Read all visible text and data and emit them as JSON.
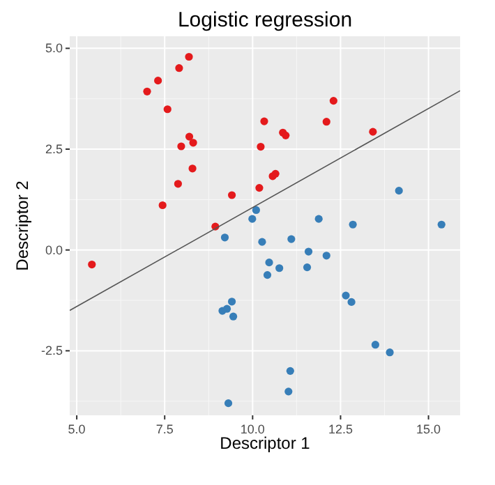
{
  "chart_data": {
    "type": "scatter",
    "title": "Logistic regression",
    "xlabel": "Descriptor 1",
    "ylabel": "Descriptor 2",
    "xlim": [
      4.8,
      15.9
    ],
    "ylim": [
      -4.1,
      5.3
    ],
    "xticks": [
      {
        "value": 5,
        "label": "5.0"
      },
      {
        "value": 7.5,
        "label": "7.5"
      },
      {
        "value": 10,
        "label": "10.0"
      },
      {
        "value": 12.5,
        "label": "12.5"
      },
      {
        "value": 15,
        "label": "15.0"
      }
    ],
    "yticks": [
      {
        "value": -2.5,
        "label": "-2.5"
      },
      {
        "value": 0,
        "label": "0.0"
      },
      {
        "value": 2.5,
        "label": "2.5"
      },
      {
        "value": 5,
        "label": "5.0"
      }
    ],
    "grid": true,
    "marker": "circle",
    "series": [
      {
        "color": "#e41a1c",
        "x": [
          8.19,
          7.91,
          7.31,
          7.0,
          7.58,
          10.33,
          8.2,
          7.97,
          8.31,
          10.23,
          8.29,
          7.88,
          10.57,
          10.65,
          10.19,
          9.41,
          7.44,
          8.94,
          12.3,
          12.1,
          10.86,
          10.94,
          13.42,
          5.43
        ],
        "values": [
          4.79,
          4.51,
          4.2,
          3.93,
          3.49,
          3.19,
          2.81,
          2.57,
          2.66,
          2.56,
          2.02,
          1.64,
          1.83,
          1.89,
          1.54,
          1.36,
          1.11,
          0.58,
          3.7,
          3.18,
          2.91,
          2.84,
          2.93,
          -0.36
        ]
      },
      {
        "color": "#377eb8",
        "x": [
          14.16,
          10.1,
          9.99,
          11.88,
          12.85,
          15.37,
          9.21,
          10.27,
          10.47,
          10.42,
          9.41,
          9.27,
          9.14,
          9.45,
          9.31,
          11.1,
          11.59,
          12.1,
          10.76,
          11.55,
          12.65,
          12.81,
          13.49,
          13.9,
          11.07,
          11.02
        ],
        "values": [
          1.47,
          0.99,
          0.77,
          0.77,
          0.63,
          0.63,
          0.31,
          0.2,
          -0.31,
          -0.62,
          -1.28,
          -1.46,
          -1.51,
          -1.65,
          -3.8,
          0.27,
          -0.04,
          -0.14,
          -0.45,
          -0.43,
          -1.13,
          -1.29,
          -2.35,
          -2.54,
          -3.0,
          -3.51
        ]
      },
      {
        "type": "line",
        "color": "#555555",
        "x": [
          4.8,
          15.9
        ],
        "values": [
          -1.5,
          3.95
        ],
        "marker": "none"
      }
    ]
  }
}
